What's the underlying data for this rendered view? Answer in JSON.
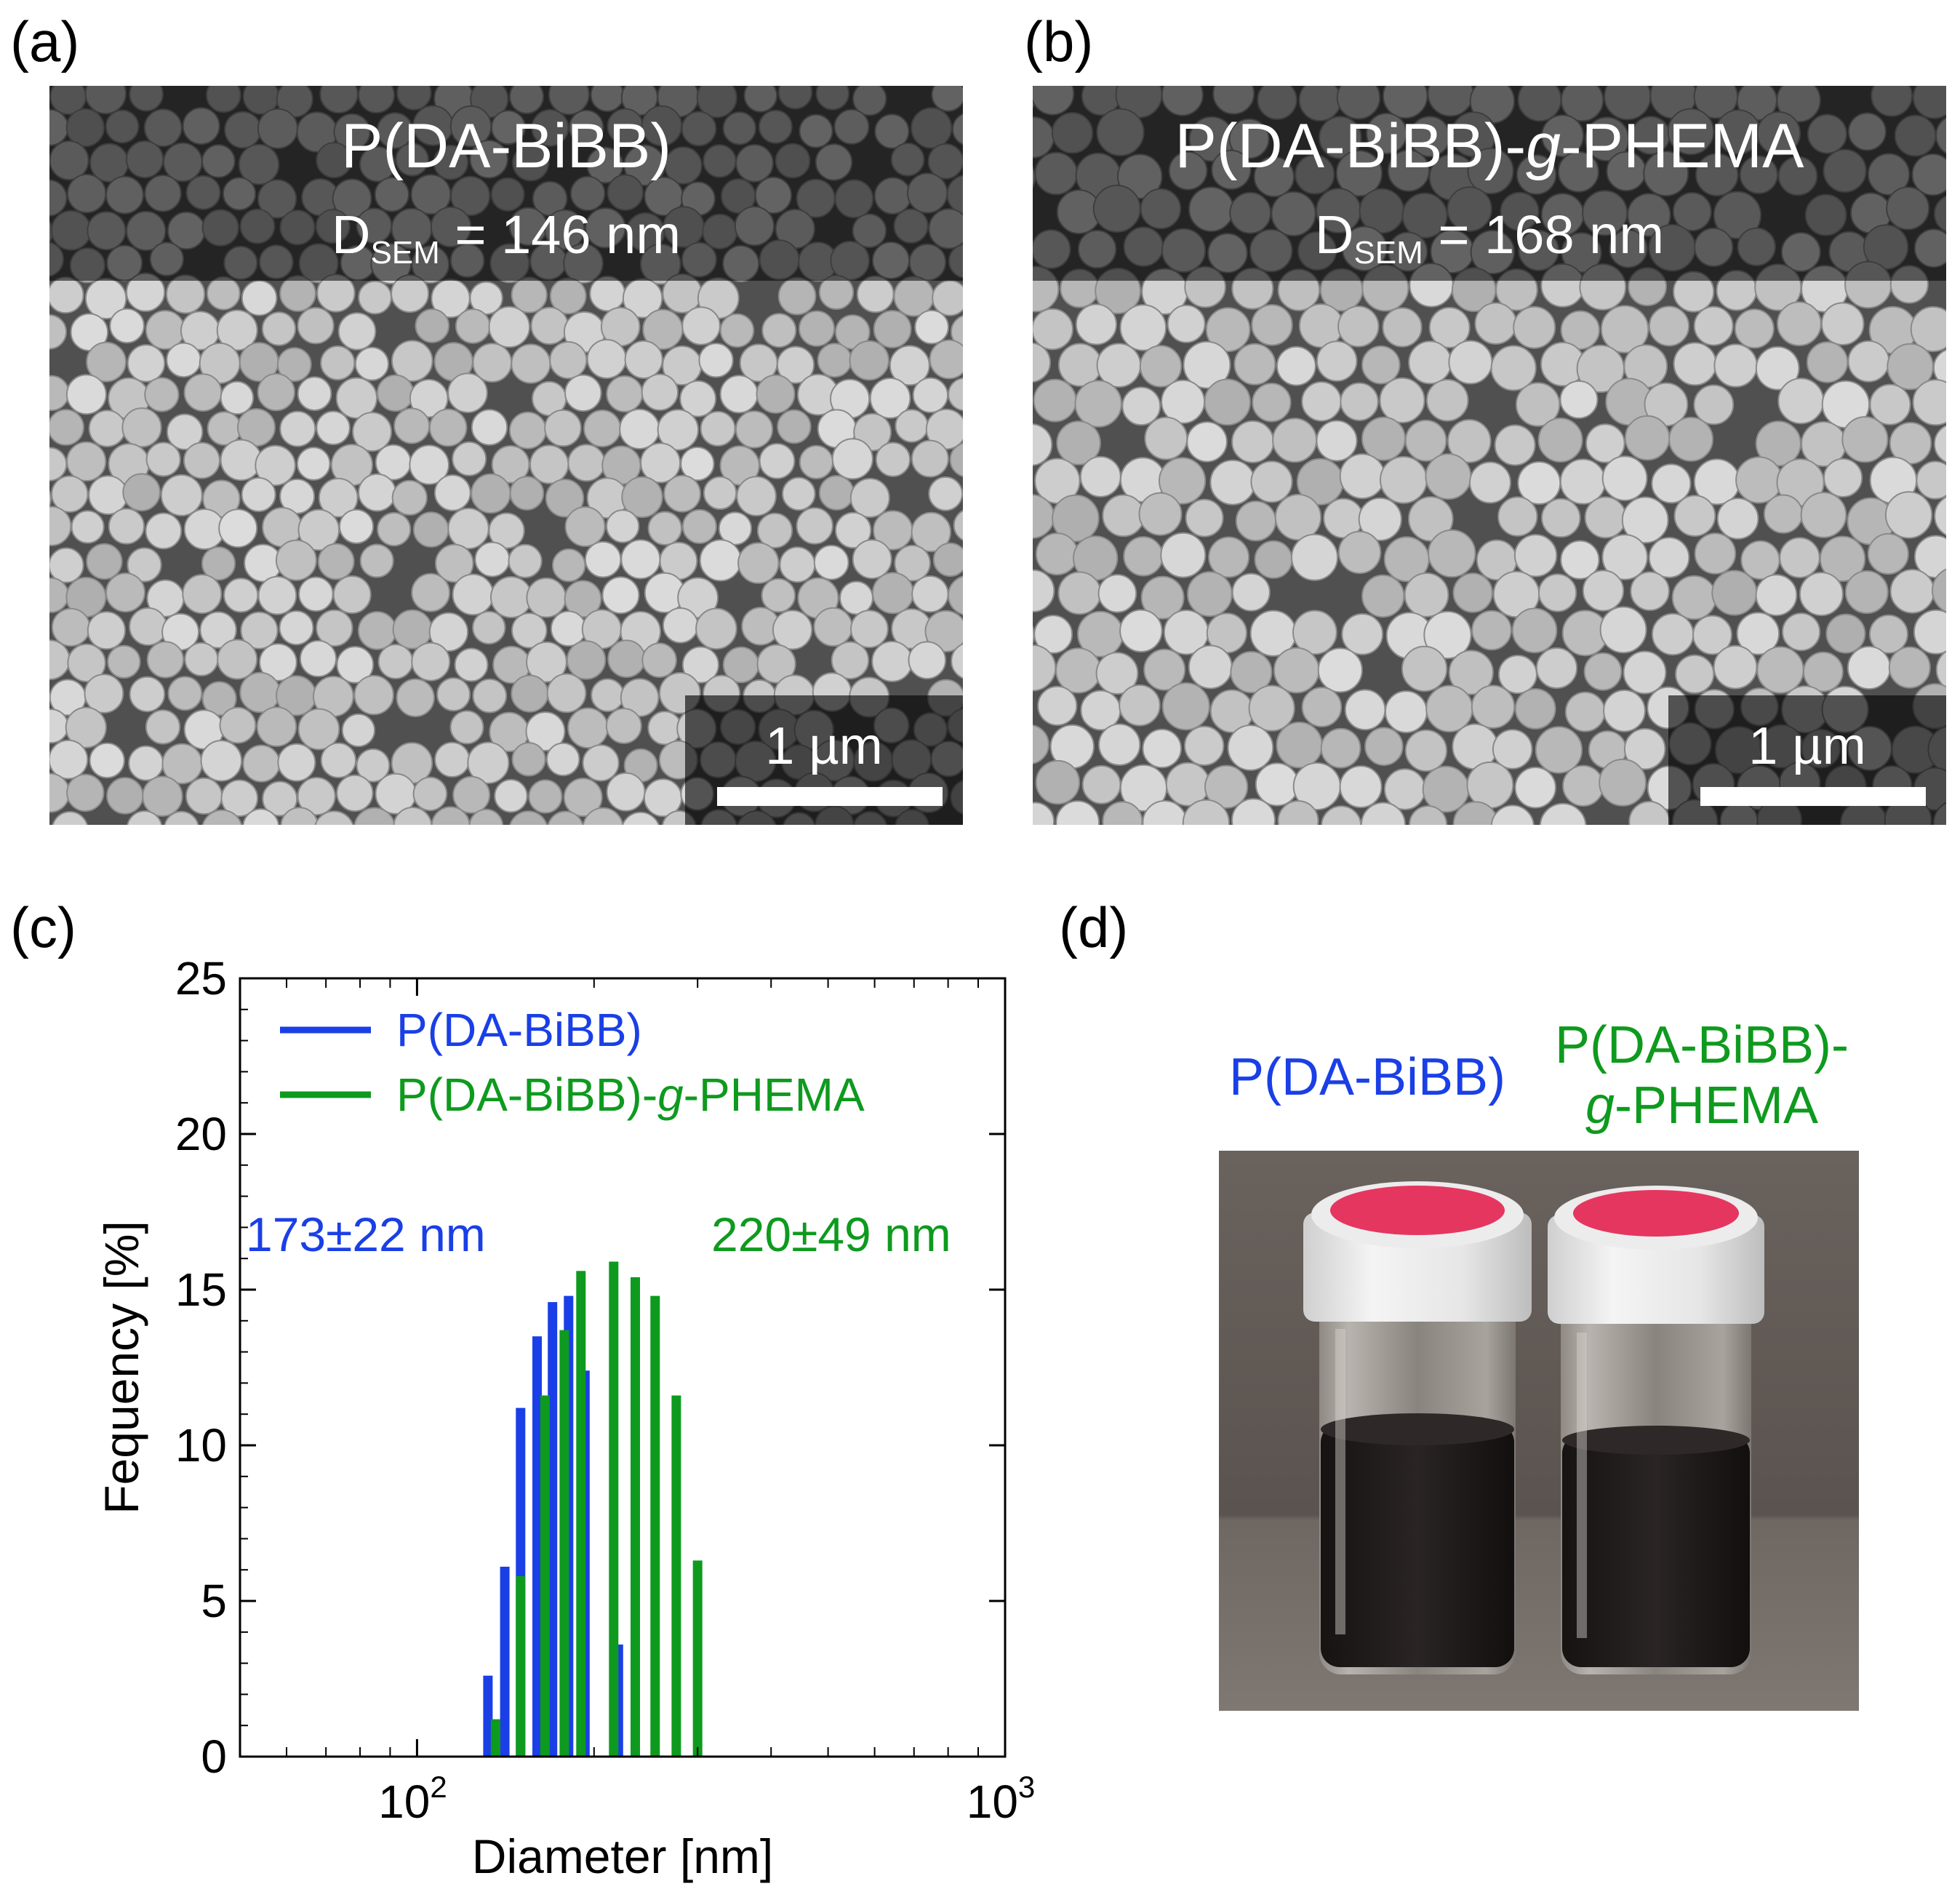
{
  "panels": {
    "a": {
      "letter": "(a)",
      "title": "P(DA-BiBB)",
      "d_prefix": "D",
      "d_sub": "SEM",
      "d_value": " = 146 nm",
      "scale": "1 µm"
    },
    "b": {
      "letter": "(b)",
      "title_pre": "P(DA-BiBB)-",
      "title_it": "g",
      "title_post": "-PHEMA",
      "d_prefix": "D",
      "d_sub": "SEM",
      "d_value": " = 168 nm",
      "scale": "1 µm"
    },
    "c": {
      "letter": "(c)"
    },
    "d": {
      "letter": "(d)",
      "label_left": "P(DA-BiBB)",
      "label_right_1": "P(DA-BiBB)-",
      "label_right_2_it": "g",
      "label_right_2": "-PHEMA"
    }
  },
  "colors": {
    "blue": "#1a3fe6",
    "green": "#0e9a1e",
    "sem_gray": "#6e6e6e",
    "vial_cap": "#e53660",
    "liquid": "#1e1a1a"
  },
  "chart_data": {
    "type": "bar",
    "xlabel": "Diameter [nm]",
    "ylabel": "Fequency [%]",
    "x_scale": "log",
    "xlim": [
      50,
      1000
    ],
    "ylim": [
      0,
      25
    ],
    "yticks": [
      "0",
      "5",
      "10",
      "15",
      "20",
      "25"
    ],
    "xticks": [
      {
        "value": 100,
        "base": "10",
        "exp": "2"
      },
      {
        "value": 1000,
        "base": "10",
        "exp": "3"
      }
    ],
    "legend_position": "top-left",
    "series": [
      {
        "name": "P(DA-BiBB)",
        "color": "#1a3fe6",
        "annotation": "173±22 nm",
        "x": [
          132,
          141,
          150,
          160,
          170,
          181,
          193,
          220
        ],
        "values": [
          2.6,
          6.1,
          11.2,
          13.5,
          14.6,
          14.8,
          12.4,
          3.6
        ]
      },
      {
        "name_pre": "P(DA-BiBB)-",
        "name_it": "g",
        "name_post": "-PHEMA",
        "color": "#0e9a1e",
        "annotation": "220±49 nm",
        "x": [
          136,
          150,
          165,
          178,
          190,
          216,
          235,
          254,
          276,
          300
        ],
        "values": [
          1.2,
          5.8,
          11.6,
          13.7,
          15.6,
          15.9,
          15.4,
          14.8,
          11.6,
          6.3
        ]
      }
    ]
  }
}
